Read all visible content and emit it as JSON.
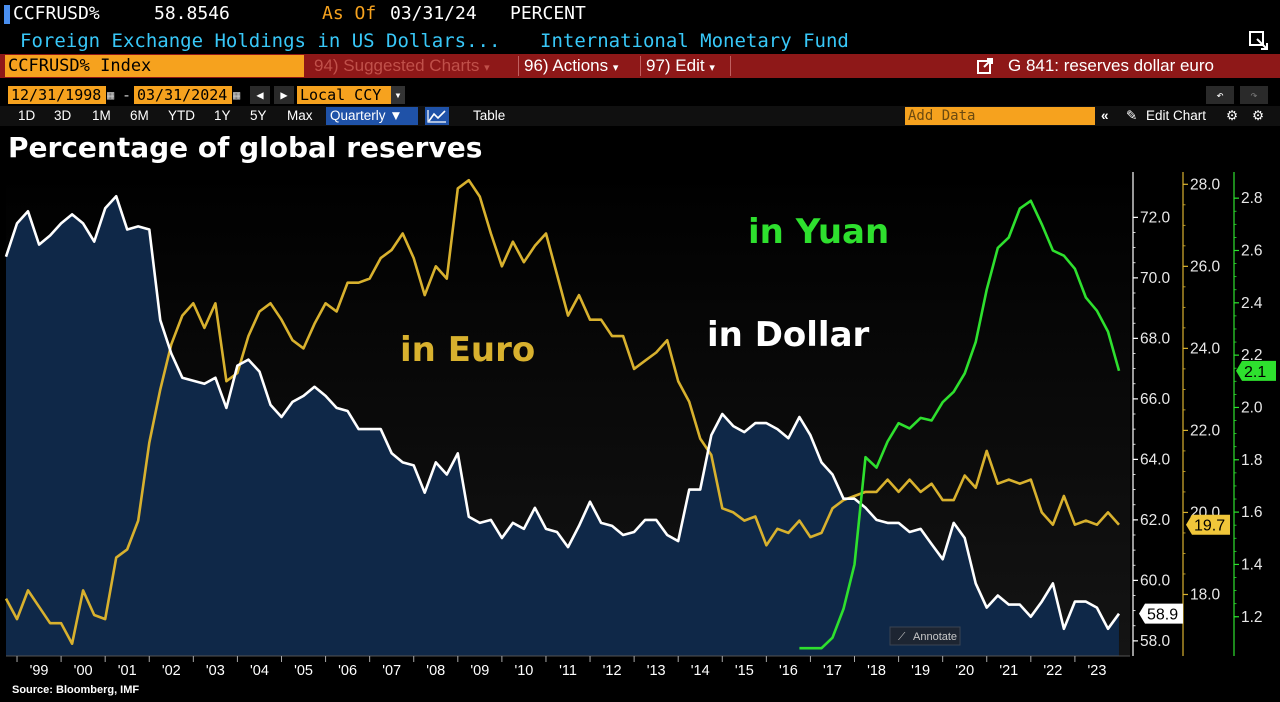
{
  "header": {
    "ticker": "CCFRUSD%",
    "value": "58.8546",
    "as_of_label": "As Of",
    "as_of_date": "03/31/24",
    "unit": "PERCENT",
    "description": "Foreign Exchange Holdings in US Dollars...",
    "source_org": "International Monetary Fund"
  },
  "toolbar": {
    "security": "CCFRUSD% Index",
    "suggested_charts": "94) Suggested Charts",
    "actions": "96) Actions",
    "edit": "97) Edit",
    "command": "G 841: reserves dollar euro",
    "start_date": "12/31/1998",
    "end_date": "03/31/2024",
    "currency": "Local CCY",
    "ranges": [
      "1D",
      "3D",
      "1M",
      "6M",
      "YTD",
      "1Y",
      "5Y",
      "Max"
    ],
    "periodicity": "Quarterly",
    "table_label": "Table",
    "add_data_placeholder": "Add Data",
    "edit_chart_label": "Edit Chart",
    "annotate_label": "Annotate"
  },
  "colors": {
    "accent_orange": "#f6a21e",
    "toolbar_red": "#8e1818",
    "header_cyan": "#38c8f8",
    "dollar_line": "#ffffff",
    "dollar_fill": "#0f2848",
    "euro_line": "#d8b12e",
    "yuan_line": "#2ee02e"
  },
  "chart_data": {
    "type": "line",
    "title": "Percentage of global reserves",
    "source_note": "Source: Bloomberg, IMF",
    "x_tick_labels": [
      "'99",
      "'00",
      "'01",
      "'02",
      "'03",
      "'04",
      "'05",
      "'06",
      "'07",
      "'08",
      "'09",
      "'10",
      "'11",
      "'12",
      "'13",
      "'14",
      "'15",
      "'16",
      "'17",
      "'18",
      "'19",
      "'20",
      "'21",
      "'22",
      "'23"
    ],
    "x_range": [
      1998.75,
      2024.25
    ],
    "series": [
      {
        "name": "in Dollar",
        "axis": "left",
        "last_value_label": "58.9",
        "x": [
          1998.75,
          1999,
          1999.25,
          1999.5,
          1999.75,
          2000,
          2000.25,
          2000.5,
          2000.75,
          2001,
          2001.25,
          2001.5,
          2001.75,
          2002,
          2002.25,
          2002.5,
          2002.75,
          2003,
          2003.25,
          2003.5,
          2003.75,
          2004,
          2004.25,
          2004.5,
          2004.75,
          2005,
          2005.25,
          2005.5,
          2005.75,
          2006,
          2006.25,
          2006.5,
          2006.75,
          2007,
          2007.25,
          2007.5,
          2007.75,
          2008,
          2008.25,
          2008.5,
          2008.75,
          2009,
          2009.25,
          2009.5,
          2009.75,
          2010,
          2010.25,
          2010.5,
          2010.75,
          2011,
          2011.25,
          2011.5,
          2011.75,
          2012,
          2012.25,
          2012.5,
          2012.75,
          2013,
          2013.25,
          2013.5,
          2013.75,
          2014,
          2014.25,
          2014.5,
          2014.75,
          2015,
          2015.25,
          2015.5,
          2015.75,
          2016,
          2016.25,
          2016.5,
          2016.75,
          2017,
          2017.25,
          2017.5,
          2017.75,
          2018,
          2018.25,
          2018.5,
          2018.75,
          2019,
          2019.25,
          2019.5,
          2019.75,
          2020,
          2020.25,
          2020.5,
          2020.75,
          2021,
          2021.25,
          2021.5,
          2021.75,
          2022,
          2022.25,
          2022.5,
          2022.75,
          2023,
          2023.25,
          2023.5,
          2023.75,
          2024
        ],
        "y": [
          70.7,
          71.8,
          72.2,
          71.1,
          71.4,
          71.8,
          72.1,
          71.8,
          71.2,
          72.3,
          72.7,
          71.6,
          71.7,
          71.6,
          68.6,
          67.5,
          66.7,
          66.6,
          66.5,
          66.7,
          65.7,
          67.1,
          67.3,
          66.9,
          65.8,
          65.4,
          65.9,
          66.1,
          66.4,
          66.1,
          65.7,
          65.6,
          65.0,
          65.0,
          65.0,
          64.2,
          63.9,
          63.8,
          62.9,
          63.9,
          63.5,
          64.2,
          62.1,
          61.9,
          62.0,
          61.4,
          61.9,
          61.7,
          62.4,
          61.7,
          61.6,
          61.1,
          61.8,
          62.6,
          61.9,
          61.8,
          61.5,
          61.6,
          62.0,
          62.0,
          61.5,
          61.3,
          63.0,
          63.0,
          64.8,
          65.5,
          65.1,
          64.9,
          65.2,
          65.2,
          65.0,
          64.7,
          65.4,
          64.8,
          63.9,
          63.5,
          62.7,
          62.7,
          62.4,
          62.0,
          61.9,
          61.9,
          61.6,
          61.7,
          61.2,
          60.7,
          61.9,
          61.4,
          59.9,
          59.1,
          59.5,
          59.2,
          59.2,
          58.8,
          59.3,
          59.9,
          58.4,
          59.3,
          59.3,
          59.1,
          58.4,
          58.9
        ]
      },
      {
        "name": "in Euro",
        "axis": "right_yellow",
        "last_value_label": "19.7",
        "x": [
          1998.75,
          1999,
          1999.25,
          1999.5,
          1999.75,
          2000,
          2000.25,
          2000.5,
          2000.75,
          2001,
          2001.25,
          2001.5,
          2001.75,
          2002,
          2002.25,
          2002.5,
          2002.75,
          2003,
          2003.25,
          2003.5,
          2003.75,
          2004,
          2004.25,
          2004.5,
          2004.75,
          2005,
          2005.25,
          2005.5,
          2005.75,
          2006,
          2006.25,
          2006.5,
          2006.75,
          2007,
          2007.25,
          2007.5,
          2007.75,
          2008,
          2008.25,
          2008.5,
          2008.75,
          2009,
          2009.25,
          2009.5,
          2009.75,
          2010,
          2010.25,
          2010.5,
          2010.75,
          2011,
          2011.25,
          2011.5,
          2011.75,
          2012,
          2012.25,
          2012.5,
          2012.75,
          2013,
          2013.25,
          2013.5,
          2013.75,
          2014,
          2014.25,
          2014.5,
          2014.75,
          2015,
          2015.25,
          2015.5,
          2015.75,
          2016,
          2016.25,
          2016.5,
          2016.75,
          2017,
          2017.25,
          2017.5,
          2017.75,
          2018,
          2018.25,
          2018.5,
          2018.75,
          2019,
          2019.25,
          2019.5,
          2019.75,
          2020,
          2020.25,
          2020.5,
          2020.75,
          2021,
          2021.25,
          2021.5,
          2021.75,
          2022,
          2022.25,
          2022.5,
          2022.75,
          2023,
          2023.25,
          2023.5,
          2023.75,
          2024
        ],
        "y": [
          17.9,
          17.4,
          18.1,
          17.7,
          17.3,
          17.3,
          16.8,
          18.1,
          17.5,
          17.4,
          18.9,
          19.1,
          19.8,
          21.7,
          23.0,
          24.1,
          24.8,
          25.1,
          24.5,
          25.1,
          23.2,
          23.4,
          24.3,
          24.9,
          25.1,
          24.7,
          24.2,
          24.0,
          24.6,
          25.1,
          24.9,
          25.6,
          25.6,
          25.7,
          26.2,
          26.4,
          26.8,
          26.2,
          25.3,
          26.0,
          25.7,
          27.9,
          28.1,
          27.7,
          26.8,
          26.0,
          26.6,
          26.1,
          26.5,
          26.8,
          25.8,
          24.8,
          25.3,
          24.7,
          24.7,
          24.3,
          24.3,
          23.5,
          23.7,
          23.9,
          24.2,
          23.2,
          22.7,
          21.8,
          21.4,
          20.1,
          20.0,
          19.8,
          19.9,
          19.2,
          19.6,
          19.5,
          19.8,
          19.4,
          19.5,
          20.1,
          20.3,
          20.4,
          20.5,
          20.5,
          20.8,
          20.5,
          20.8,
          20.5,
          20.7,
          20.3,
          20.3,
          20.9,
          20.6,
          21.5,
          20.7,
          20.8,
          20.7,
          20.8,
          20.0,
          19.7,
          20.4,
          19.7,
          19.8,
          19.7,
          20.0,
          19.7
        ]
      },
      {
        "name": "in Yuan",
        "axis": "right_green",
        "last_value_label": "2.1",
        "x": [
          2016.75,
          2017,
          2017.25,
          2017.5,
          2017.75,
          2018,
          2018.25,
          2018.5,
          2018.75,
          2019,
          2019.25,
          2019.5,
          2019.75,
          2020,
          2020.25,
          2020.5,
          2020.75,
          2021,
          2021.25,
          2021.5,
          2021.75,
          2022,
          2022.25,
          2022.5,
          2022.75,
          2023,
          2023.25,
          2023.5,
          2023.75,
          2024
        ],
        "y": [
          1.08,
          1.08,
          1.08,
          1.12,
          1.23,
          1.4,
          1.81,
          1.77,
          1.87,
          1.94,
          1.92,
          1.96,
          1.95,
          2.02,
          2.06,
          2.13,
          2.25,
          2.45,
          2.61,
          2.65,
          2.76,
          2.79,
          2.7,
          2.6,
          2.58,
          2.53,
          2.42,
          2.37,
          2.29,
          2.14
        ]
      }
    ],
    "axes": {
      "left": {
        "ylim": [
          57.5,
          73.5
        ],
        "ticks": [
          58,
          60,
          62,
          64,
          66,
          68,
          70,
          72
        ]
      },
      "right_yellow": {
        "ylim": [
          16.5,
          28.3
        ],
        "ticks": [
          18,
          20,
          22,
          24,
          26,
          28
        ]
      },
      "right_green": {
        "ylim": [
          1.05,
          2.9
        ],
        "ticks": [
          1.2,
          1.4,
          1.6,
          1.8,
          2.0,
          2.2,
          2.4,
          2.6,
          2.8
        ]
      }
    },
    "grid": false,
    "legend": "inline labels"
  }
}
